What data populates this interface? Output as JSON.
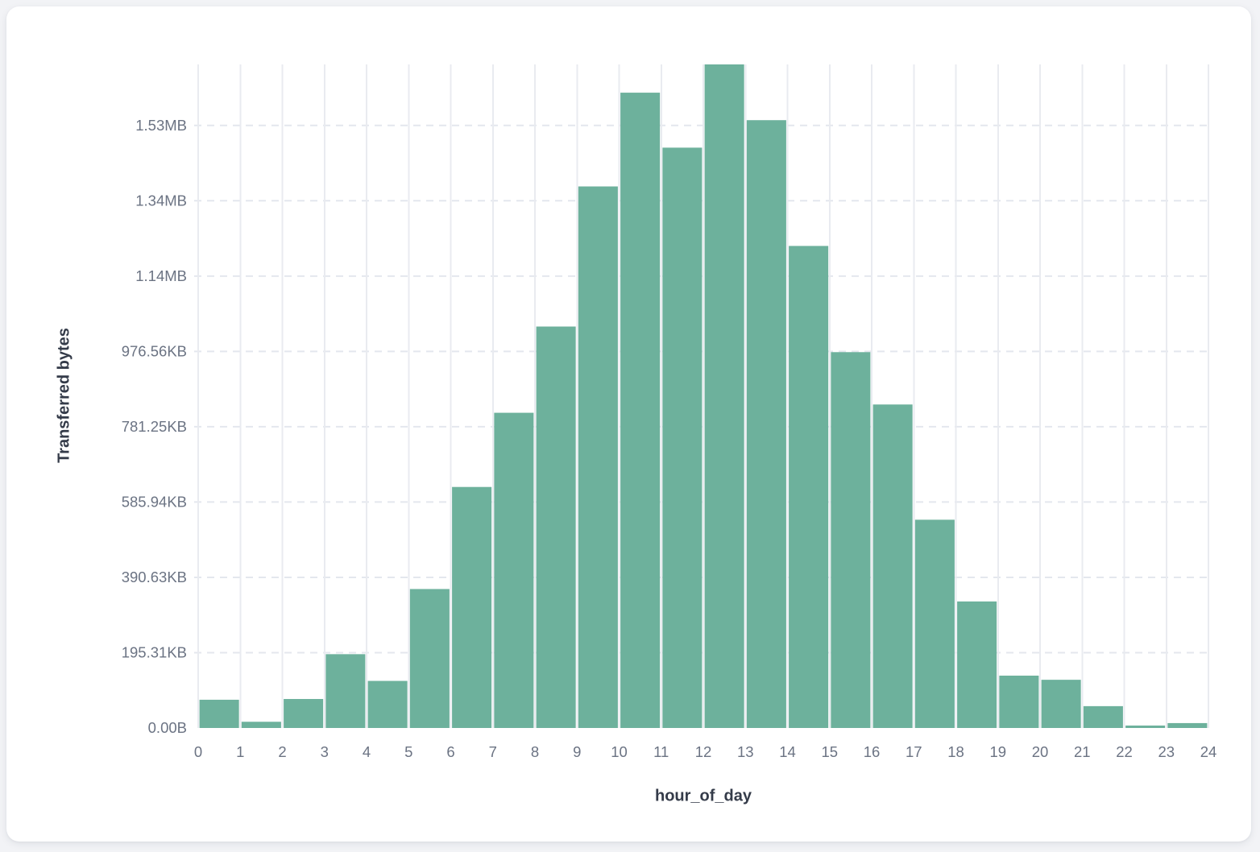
{
  "chart_data": {
    "type": "bar",
    "title": "",
    "xlabel": "hour_of_day",
    "ylabel": "Transferred bytes",
    "unit": "bytes",
    "categories": [
      0,
      1,
      2,
      3,
      4,
      5,
      6,
      7,
      8,
      9,
      10,
      11,
      12,
      13,
      14,
      15,
      16,
      17,
      18,
      19,
      20,
      21,
      22,
      23
    ],
    "values": [
      75000,
      16500,
      77000,
      196000,
      125000,
      369000,
      640000,
      837000,
      1066000,
      1438000,
      1687000,
      1541000,
      1762000,
      1614000,
      1280000,
      998000,
      859000,
      553000,
      336000,
      139000,
      128000,
      58000,
      6500,
      13000
    ],
    "x_tick_labels": [
      "0",
      "1",
      "2",
      "3",
      "4",
      "5",
      "6",
      "7",
      "8",
      "9",
      "10",
      "11",
      "12",
      "13",
      "14",
      "15",
      "16",
      "17",
      "18",
      "19",
      "20",
      "21",
      "22",
      "23",
      "24"
    ],
    "y_tick_labels": [
      "0.00B",
      "195.31KB",
      "390.63KB",
      "585.94KB",
      "781.25KB",
      "976.56KB",
      "1.14MB",
      "1.34MB",
      "1.53MB"
    ],
    "y_tick_bytes": [
      0,
      200000,
      400000,
      600000,
      800000,
      1000000,
      1200000,
      1400000,
      1600000
    ],
    "ylim": [
      0,
      1762000
    ],
    "grid": true,
    "legend": false
  },
  "style": {
    "bar_color": "#6DB19C",
    "vertical_grid_color": "#e9ebf0",
    "horizontal_grid_color": "#e4e7ee",
    "tick_label_color": "#6b7383",
    "axis_title_color": "#343b49",
    "card_background": "#ffffff",
    "page_background": "#f2f3f6"
  }
}
